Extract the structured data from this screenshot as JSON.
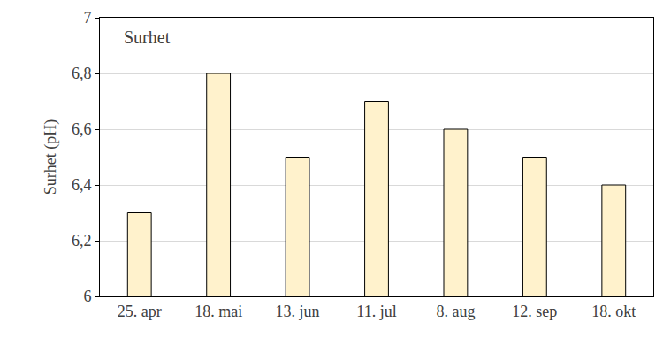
{
  "chart_data": {
    "type": "bar",
    "title": "Surhet",
    "y_label": "Surhet (pH)",
    "categories": [
      "25. apr",
      "18. mai",
      "13. jun",
      "11. jul",
      "8. aug",
      "12. sep",
      "18. okt"
    ],
    "values": [
      6.3,
      6.8,
      6.5,
      6.7,
      6.6,
      6.5,
      6.4
    ],
    "color": "#fff2cc",
    "ylim": [
      6,
      7
    ],
    "yticks": [
      6,
      {
        "value": 6.2,
        "label": "6,2"
      },
      {
        "value": 6.4,
        "label": "6,4"
      },
      {
        "value": 6.6,
        "label": "6,6"
      },
      {
        "value": 6.8,
        "label": "6,8"
      },
      7
    ],
    "grid": true
  }
}
